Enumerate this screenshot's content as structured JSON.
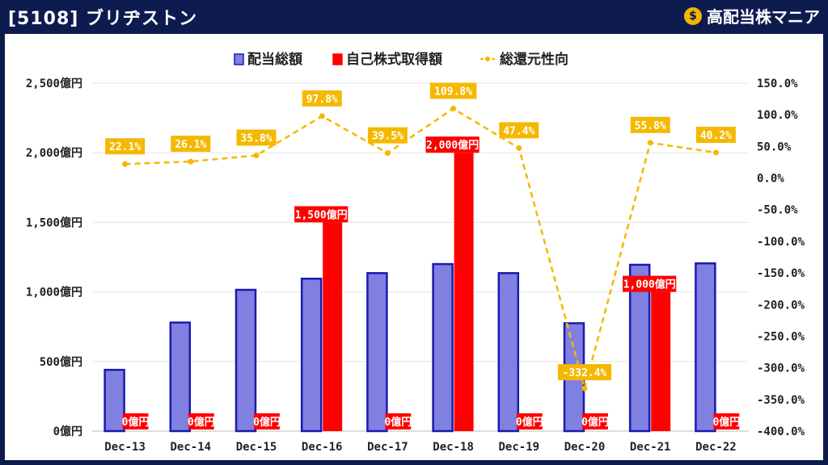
{
  "header": {
    "title": "[5108] ブリヂストン",
    "brand": "高配当株マニア",
    "brand_icon": "money-bag-icon",
    "brand_icon_glyph": "$"
  },
  "colors": {
    "background": "#0d1b4f",
    "dividend_fill": "#8080e0",
    "dividend_stroke": "#1a1ab0",
    "buyback_fill": "#ff0000",
    "payout_line": "#f5b800",
    "grid": "#e6e6e6"
  },
  "chart_data": {
    "type": "bar",
    "categories": [
      "Dec-13",
      "Dec-14",
      "Dec-15",
      "Dec-16",
      "Dec-17",
      "Dec-18",
      "Dec-19",
      "Dec-20",
      "Dec-21",
      "Dec-22"
    ],
    "series": [
      {
        "name": "配当総額",
        "type": "bar",
        "axis": "left",
        "unit": "億円",
        "values": [
          440,
          780,
          1015,
          1095,
          1135,
          1200,
          1135,
          775,
          1195,
          1205
        ]
      },
      {
        "name": "自己株式取得額",
        "type": "bar",
        "axis": "left",
        "unit": "億円",
        "values": [
          0,
          0,
          0,
          1500,
          0,
          2000,
          0,
          0,
          1000,
          0
        ],
        "labels": [
          "0億円",
          "0億円",
          "0億円",
          "1,500億円",
          "0億円",
          "2,000億円",
          "0億円",
          "0億円",
          "1,000億円",
          "0億円"
        ]
      },
      {
        "name": "総還元性向",
        "type": "line",
        "axis": "right",
        "unit": "%",
        "values": [
          22.1,
          26.1,
          35.8,
          97.8,
          39.5,
          109.8,
          47.4,
          -332.4,
          55.8,
          40.2
        ],
        "labels": [
          "22.1%",
          "26.1%",
          "35.8%",
          "97.8%",
          "39.5%",
          "109.8%",
          "47.4%",
          "-332.4%",
          "55.8%",
          "40.2%"
        ]
      }
    ],
    "left_axis": {
      "ylim": [
        0,
        2500
      ],
      "ticks": [
        0,
        500,
        1000,
        1500,
        2000,
        2500
      ],
      "tick_labels": [
        "0億円",
        "500億円",
        "1,000億円",
        "1,500億円",
        "2,000億円",
        "2,500億円"
      ]
    },
    "right_axis": {
      "ylim": [
        -400,
        150
      ],
      "ticks": [
        150,
        100,
        50,
        0,
        -50,
        -100,
        -150,
        -200,
        -250,
        -300,
        -350,
        -400
      ],
      "tick_labels": [
        "150.0%",
        "100.0%",
        "50.0%",
        "0.0%",
        "-50.0%",
        "-100.0%",
        "-150.0%",
        "-200.0%",
        "-250.0%",
        "-300.0%",
        "-350.0%",
        "-400.0%"
      ]
    },
    "legend_position": "top",
    "grid": true
  }
}
